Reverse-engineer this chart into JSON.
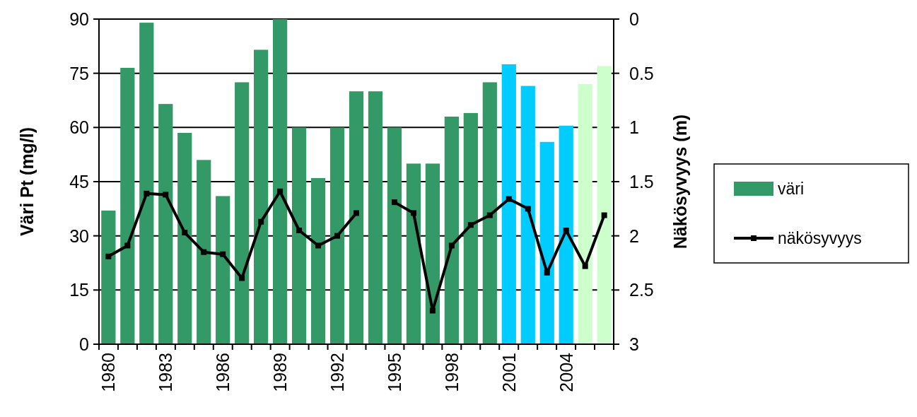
{
  "chart_data": {
    "type": "bar",
    "ylabel": "Väri Pt (mg/l)",
    "y2label": "Näkösyvyys (m)",
    "categories": [
      "1980",
      null,
      null,
      "1983",
      null,
      null,
      "1986",
      null,
      null,
      "1989",
      null,
      null,
      "1992",
      null,
      null,
      "1995",
      null,
      null,
      "1998",
      null,
      null,
      "2001",
      null,
      null,
      "2004",
      null,
      null
    ],
    "series": [
      {
        "name": "väri",
        "color": "#339966",
        "colors": [
          "#339966",
          "#339966",
          "#339966",
          "#339966",
          "#339966",
          "#339966",
          "#339966",
          "#339966",
          "#339966",
          "#339966",
          "#339966",
          "#339966",
          "#339966",
          "#339966",
          "#339966",
          "#339966",
          "#339966",
          "#339966",
          "#339966",
          "#339966",
          "#339966",
          "#00ccff",
          "#00ccff",
          "#00ccff",
          "#00ccff",
          "#ccffcc",
          "#ccffcc"
        ],
        "values": [
          37,
          76.5,
          89,
          66.5,
          58.5,
          51,
          41,
          72.5,
          81.5,
          90,
          60,
          46,
          60,
          70,
          70,
          60,
          50,
          50,
          63,
          64,
          72.5,
          77.5,
          71.5,
          56,
          60.5,
          72,
          77
        ]
      },
      {
        "name": "näkösyvyys",
        "type": "line",
        "axis": "y2",
        "color": "#000000",
        "marker": "square",
        "values": [
          2.19,
          2.09,
          1.61,
          1.62,
          1.97,
          2.15,
          2.17,
          2.39,
          1.87,
          1.59,
          1.95,
          2.09,
          2.0,
          1.79,
          null,
          1.69,
          1.79,
          2.69,
          2.09,
          1.9,
          1.81,
          1.66,
          1.75,
          2.34,
          1.95,
          2.28,
          1.81
        ]
      }
    ],
    "ylim": [
      0,
      90
    ],
    "yticks": [
      0,
      15,
      30,
      45,
      60,
      75,
      90
    ],
    "y2lim": [
      3,
      0
    ],
    "y2ticks": [
      0,
      0.5,
      1,
      1.5,
      2,
      2.5,
      3
    ],
    "grid": "y",
    "legend": "right"
  }
}
